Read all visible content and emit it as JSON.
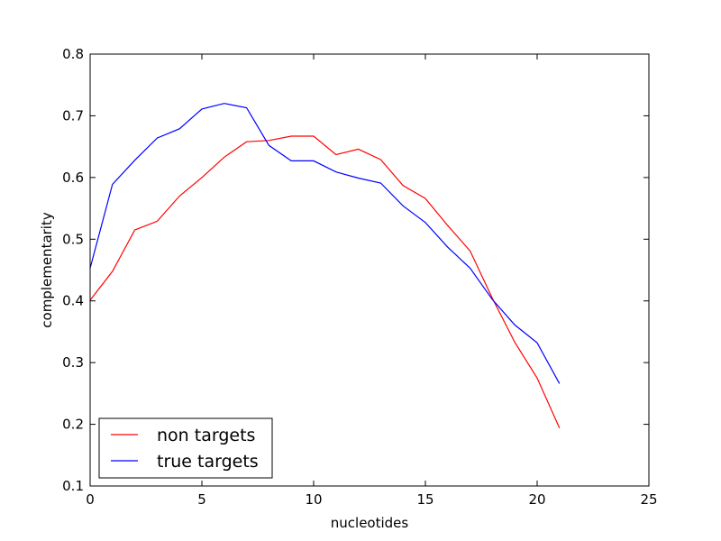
{
  "chart_data": {
    "type": "line",
    "xlabel": "nucleotides",
    "ylabel": "complementarity",
    "xlim": [
      0,
      25
    ],
    "ylim": [
      0.1,
      0.8
    ],
    "xticks": [
      0,
      5,
      10,
      15,
      20,
      25
    ],
    "yticks": [
      0.1,
      0.2,
      0.3,
      0.4,
      0.5,
      0.6,
      0.7,
      0.8
    ],
    "xtick_labels": [
      "0",
      "5",
      "10",
      "15",
      "20",
      "25"
    ],
    "ytick_labels": [
      "0.1",
      "0.2",
      "0.3",
      "0.4",
      "0.5",
      "0.6",
      "0.7",
      "0.8"
    ],
    "grid": false,
    "legend_position": "lower-left",
    "x": [
      0,
      1,
      2,
      3,
      4,
      5,
      6,
      7,
      8,
      9,
      10,
      11,
      12,
      13,
      14,
      15,
      16,
      17,
      18,
      19,
      20,
      21
    ],
    "series": [
      {
        "name": "non targets",
        "color": "#ff0000",
        "values": [
          0.401,
          0.448,
          0.515,
          0.529,
          0.57,
          0.6,
          0.633,
          0.658,
          0.66,
          0.667,
          0.667,
          0.637,
          0.646,
          0.629,
          0.587,
          0.566,
          0.522,
          0.481,
          0.404,
          0.333,
          0.275,
          0.194
        ]
      },
      {
        "name": "true targets",
        "color": "#0000ff",
        "values": [
          0.453,
          0.589,
          0.628,
          0.664,
          0.679,
          0.711,
          0.72,
          0.713,
          0.652,
          0.627,
          0.627,
          0.609,
          0.599,
          0.591,
          0.554,
          0.527,
          0.487,
          0.453,
          0.402,
          0.361,
          0.332,
          0.266
        ]
      }
    ]
  }
}
